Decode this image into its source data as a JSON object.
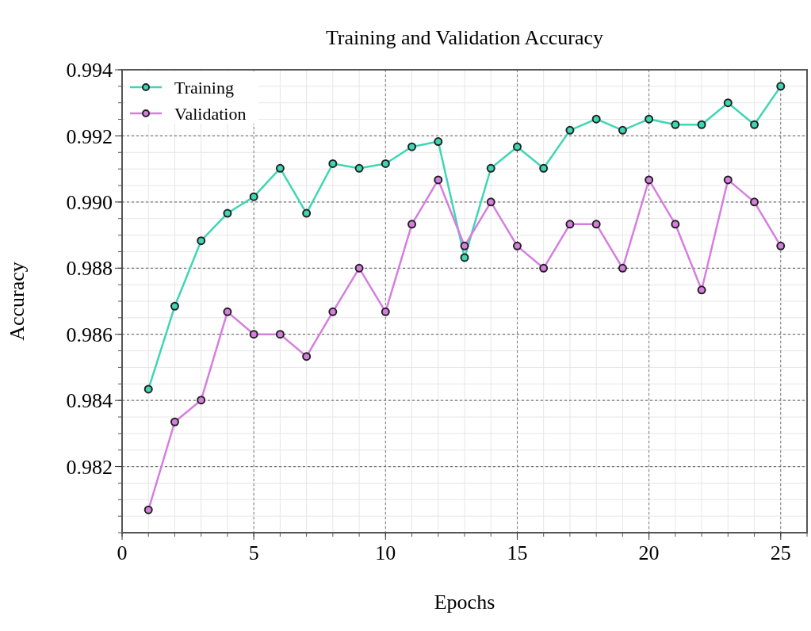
{
  "chart_data": {
    "type": "line",
    "title": "Training and Validation Accuracy",
    "xlabel": "Epochs",
    "ylabel": "Accuracy",
    "x": [
      1,
      2,
      3,
      4,
      5,
      6,
      7,
      8,
      9,
      10,
      11,
      12,
      13,
      14,
      15,
      16,
      17,
      18,
      19,
      20,
      21,
      22,
      23,
      24,
      25
    ],
    "series": [
      {
        "name": "Training",
        "color": "#3fd6b4",
        "values": [
          0.98434,
          0.98685,
          0.98883,
          0.98966,
          0.99016,
          0.99102,
          0.98966,
          0.99116,
          0.99102,
          0.99116,
          0.99167,
          0.99183,
          0.98832,
          0.99102,
          0.99167,
          0.99102,
          0.99217,
          0.99251,
          0.99217,
          0.99251,
          0.99234,
          0.99234,
          0.993,
          0.99234,
          0.9935
        ]
      },
      {
        "name": "Validation",
        "color": "#d67ee0",
        "values": [
          0.98069,
          0.98335,
          0.98401,
          0.98668,
          0.986,
          0.986,
          0.98533,
          0.98668,
          0.988,
          0.98668,
          0.98933,
          0.99067,
          0.98867,
          0.99,
          0.98867,
          0.988,
          0.98933,
          0.98933,
          0.988,
          0.99067,
          0.98933,
          0.98734,
          0.99067,
          0.99,
          0.98867
        ]
      }
    ],
    "xlim": [
      0,
      26
    ],
    "xticks": [
      0,
      5,
      10,
      15,
      20,
      25
    ],
    "ylim": [
      0.98,
      0.994
    ],
    "yticks": [
      0.982,
      0.984,
      0.986,
      0.988,
      {
        "value": 0.99,
        "label": "0.990"
      },
      0.992,
      0.994
    ],
    "grid": true,
    "legend": "top left",
    "marker": "circle",
    "line_style": "solid"
  }
}
